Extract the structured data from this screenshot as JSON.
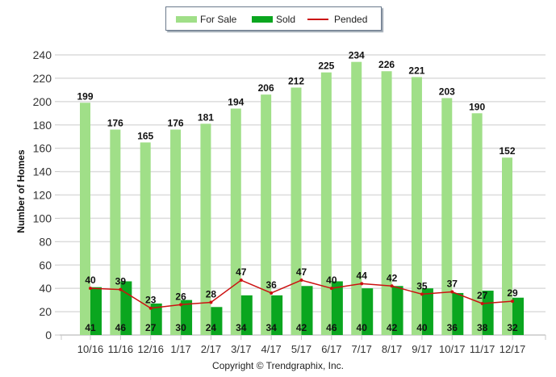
{
  "chart_data": {
    "type": "bar",
    "title": "",
    "xlabel": "",
    "ylabel": "Number of Homes",
    "ylim": [
      0,
      240
    ],
    "yticks": [
      0,
      20,
      40,
      60,
      80,
      100,
      120,
      140,
      160,
      180,
      200,
      220,
      240
    ],
    "grid": true,
    "legend_position": "top-center",
    "categories": [
      "10/16",
      "11/16",
      "12/16",
      "1/17",
      "2/17",
      "3/17",
      "4/17",
      "5/17",
      "6/17",
      "7/17",
      "8/17",
      "9/17",
      "10/17",
      "11/17",
      "12/17"
    ],
    "series": [
      {
        "name": "For Sale",
        "kind": "bar",
        "color": "#a0df88",
        "values": [
          199,
          176,
          165,
          176,
          181,
          194,
          206,
          212,
          225,
          234,
          226,
          221,
          203,
          190,
          152
        ]
      },
      {
        "name": "Sold",
        "kind": "bar",
        "color": "#0aa61f",
        "values": [
          41,
          46,
          27,
          30,
          24,
          34,
          34,
          42,
          46,
          40,
          42,
          40,
          36,
          38,
          32
        ]
      },
      {
        "name": "Pended",
        "kind": "line",
        "color": "#cc1111",
        "values": [
          40,
          39,
          23,
          26,
          28,
          47,
          36,
          47,
          40,
          44,
          42,
          35,
          37,
          27,
          29
        ]
      }
    ]
  },
  "legend": {
    "for_sale": "For Sale",
    "sold": "Sold",
    "pended": "Pended"
  },
  "footer": {
    "copyright": "Copyright © Trendgraphix, Inc."
  }
}
